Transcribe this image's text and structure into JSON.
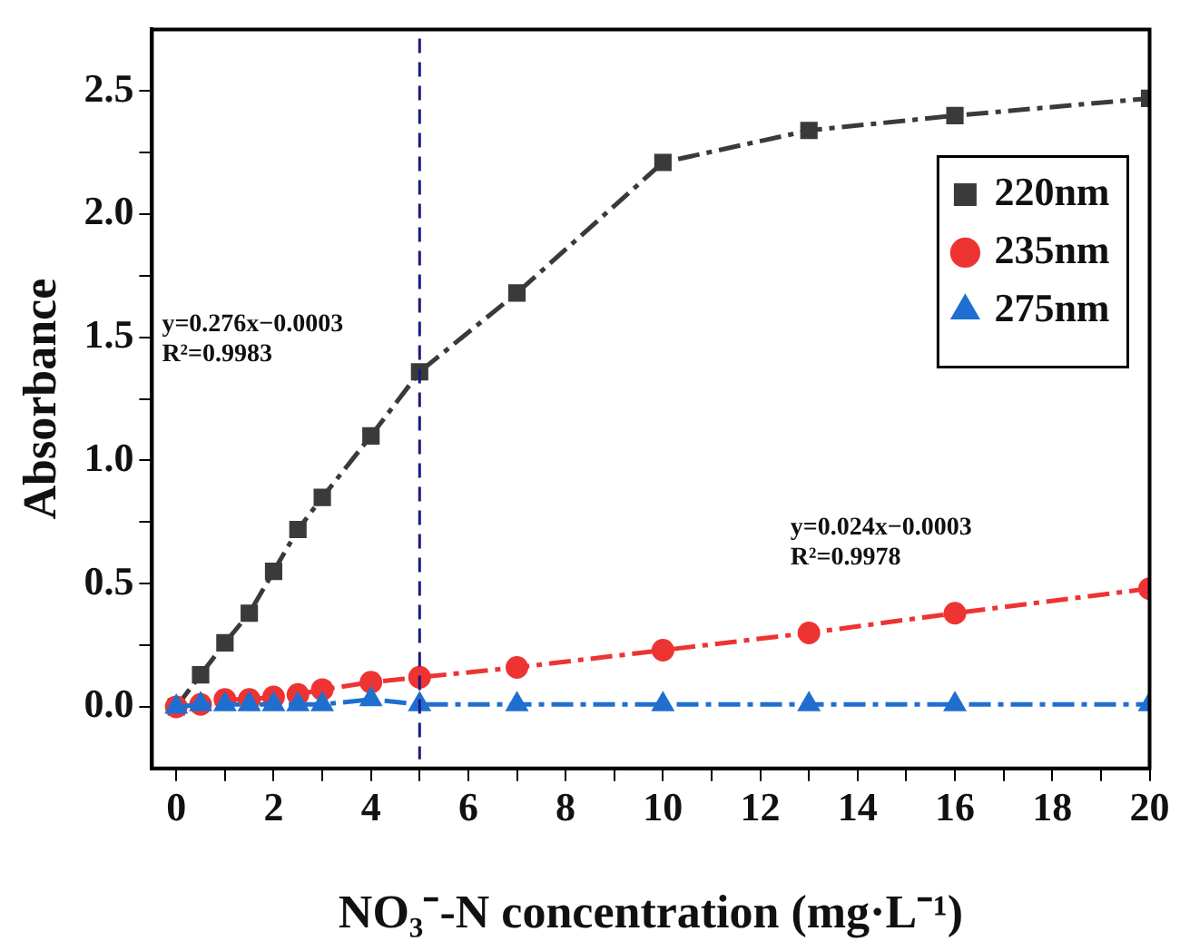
{
  "chart_data": {
    "type": "line",
    "xlabel": "NO₃⁻-N concentration (mg·L⁻¹)",
    "ylabel": "Absorbance",
    "series": [
      {
        "name": "220nm",
        "color": "#3a3a3a",
        "marker": "square",
        "x": [
          0,
          0.5,
          1,
          1.5,
          2,
          2.5,
          3,
          4,
          5,
          7,
          10,
          13,
          16,
          20
        ],
        "values": [
          0,
          0.13,
          0.26,
          0.38,
          0.55,
          0.72,
          0.85,
          1.1,
          1.36,
          1.68,
          2.21,
          2.34,
          2.4,
          2.47
        ]
      },
      {
        "name": "235nm",
        "color": "#ee3333",
        "marker": "circle",
        "x": [
          0,
          0.5,
          1,
          1.5,
          2,
          2.5,
          3,
          4,
          5,
          7,
          10,
          13,
          16,
          20
        ],
        "values": [
          0,
          0.01,
          0.03,
          0.03,
          0.04,
          0.05,
          0.07,
          0.1,
          0.12,
          0.16,
          0.23,
          0.3,
          0.38,
          0.48
        ]
      },
      {
        "name": "275nm",
        "color": "#1f6fd0",
        "marker": "triangle",
        "x": [
          0,
          0.5,
          1,
          1.5,
          2,
          2.5,
          3,
          4,
          5,
          7,
          10,
          13,
          16,
          20
        ],
        "values": [
          0,
          0.01,
          0.01,
          0.01,
          0.01,
          0.01,
          0.01,
          0.03,
          0.01,
          0.01,
          0.01,
          0.01,
          0.01,
          0.01
        ]
      }
    ],
    "line_style": "dashed",
    "xlim": [
      -0.5,
      20
    ],
    "xticks": [
      0,
      {
        "value": 1,
        "label": null
      },
      2,
      {
        "value": 3,
        "label": null
      },
      4,
      {
        "value": 5,
        "label": null
      },
      6,
      {
        "value": 7,
        "label": null
      },
      8,
      {
        "value": 9,
        "label": null
      },
      10,
      {
        "value": 11,
        "label": null
      },
      12,
      {
        "value": 13,
        "label": null
      },
      14,
      {
        "value": 15,
        "label": null
      },
      16,
      {
        "value": 17,
        "label": null
      },
      18,
      {
        "value": 19,
        "label": null
      },
      20
    ],
    "ylim": [
      -0.25,
      2.75
    ],
    "yticks": [
      {
        "value": 0,
        "label": "0.0"
      },
      {
        "value": 0.25,
        "label": null
      },
      {
        "value": 0.5,
        "label": "0.5"
      },
      {
        "value": 0.75,
        "label": null
      },
      {
        "value": 1,
        "label": "1.0"
      },
      {
        "value": 1.25,
        "label": null
      },
      {
        "value": 1.5,
        "label": "1.5"
      },
      {
        "value": 1.75,
        "label": null
      },
      {
        "value": 2,
        "label": "2.0"
      },
      {
        "value": 2.25,
        "label": null
      },
      {
        "value": 2.5,
        "label": "2.5"
      }
    ],
    "ref_lines": [
      {
        "axis": "x",
        "value": 5,
        "color": "#1a1a80",
        "line_style": "dashed"
      }
    ],
    "annotations": [
      "y=0.276x−0.0003",
      "R²=0.9983",
      "y=0.024x−0.0003",
      "R²=0.9978"
    ],
    "grid": false,
    "legend": "top right"
  }
}
